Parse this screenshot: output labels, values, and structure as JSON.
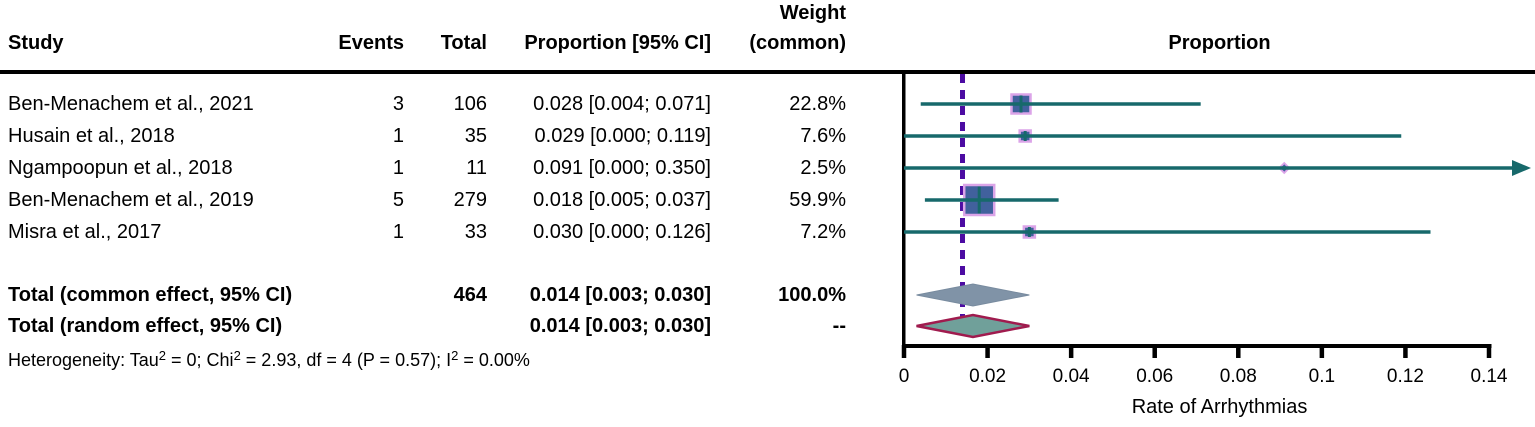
{
  "table": {
    "headers": {
      "study": "Study",
      "events": "Events",
      "total": "Total",
      "proportion": "Proportion [95% CI]",
      "weight_top": "Weight",
      "weight_bottom": "(common)"
    },
    "rows": [
      {
        "study": "Ben-Menachem et al., 2021",
        "events": "3",
        "total": "106",
        "proportion": "0.028 [0.004; 0.071]",
        "weight": "22.8%"
      },
      {
        "study": "Husain et al., 2018",
        "events": "1",
        "total": "35",
        "proportion": "0.029 [0.000; 0.119]",
        "weight": "7.6%"
      },
      {
        "study": "Ngampoopun et al., 2018",
        "events": "1",
        "total": "11",
        "proportion": "0.091 [0.000; 0.350]",
        "weight": "2.5%"
      },
      {
        "study": "Ben-Menachem et al., 2019",
        "events": "5",
        "total": "279",
        "proportion": "0.018 [0.005; 0.037]",
        "weight": "59.9%"
      },
      {
        "study": "Misra et al., 2017",
        "events": "1",
        "total": "33",
        "proportion": "0.030 [0.000; 0.126]",
        "weight": "7.2%"
      }
    ],
    "totals": [
      {
        "label": "Total (common effect, 95% CI)",
        "total": "464",
        "proportion": "0.014 [0.003; 0.030]",
        "weight": "100.0%"
      },
      {
        "label": "Total (random effect, 95% CI)",
        "total": "",
        "proportion": "0.014 [0.003; 0.030]",
        "weight": "--"
      }
    ],
    "heterogeneity": {
      "p1": "Heterogeneity: Tau",
      "s1": "2",
      "p2": " = 0; Chi",
      "s2": "2",
      "p3": " = 2.93, df = 4 (P = 0.57); I",
      "s3": "2",
      "p4": " = 0.00%"
    }
  },
  "chart_data": {
    "type": "forest",
    "title": "Proportion",
    "xlabel": "Rate of Arrhythmias",
    "xlim": [
      0,
      0.14
    ],
    "xticks": [
      0,
      0.02,
      0.04,
      0.06,
      0.08,
      0.1,
      0.12,
      0.14
    ],
    "xtick_labels": [
      "0",
      "0.02",
      "0.04",
      "0.06",
      "0.08",
      "0.1",
      "0.12",
      "0.14"
    ],
    "reference_line": 0.014,
    "studies": [
      {
        "name": "Ben-Menachem et al., 2021",
        "events": 3,
        "total": 106,
        "estimate": 0.028,
        "ci_low": 0.004,
        "ci_high": 0.071,
        "weight_pct": 22.8
      },
      {
        "name": "Husain et al., 2018",
        "events": 1,
        "total": 35,
        "estimate": 0.029,
        "ci_low": 0.0,
        "ci_high": 0.119,
        "weight_pct": 7.6
      },
      {
        "name": "Ngampoopun et al., 2018",
        "events": 1,
        "total": 11,
        "estimate": 0.091,
        "ci_low": 0.0,
        "ci_high": 0.35,
        "weight_pct": 2.5
      },
      {
        "name": "Ben-Menachem et al., 2019",
        "events": 5,
        "total": 279,
        "estimate": 0.018,
        "ci_low": 0.005,
        "ci_high": 0.037,
        "weight_pct": 59.9
      },
      {
        "name": "Misra et al., 2017",
        "events": 1,
        "total": 33,
        "estimate": 0.03,
        "ci_low": 0.0,
        "ci_high": 0.126,
        "weight_pct": 7.2
      }
    ],
    "pooled": [
      {
        "name": "Total (common effect, 95% CI)",
        "estimate": 0.014,
        "ci_low": 0.003,
        "ci_high": 0.03,
        "weight_pct": 100.0,
        "style": "common"
      },
      {
        "name": "Total (random effect, 95% CI)",
        "estimate": 0.014,
        "ci_low": 0.003,
        "ci_high": 0.03,
        "style": "random"
      }
    ],
    "colors": {
      "ci_line": "#17696b",
      "marker_fill": "#41619d",
      "marker_border": "#dba4e8",
      "reference_line": "#4c0ba2",
      "diamond_common_fill": "#8093a7",
      "diamond_common_border": "#788b9f",
      "diamond_random_fill": "#70a09a",
      "diamond_random_border": "#a01b4e",
      "axis": "#000000"
    }
  }
}
